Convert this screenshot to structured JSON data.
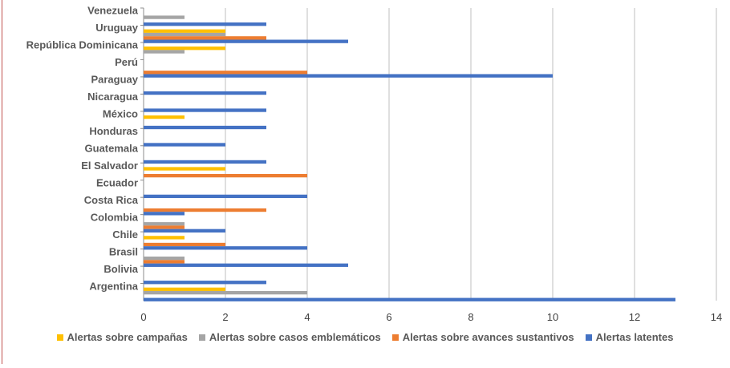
{
  "chart_data": {
    "type": "bar",
    "orientation": "horizontal",
    "categories": [
      "Argentina",
      "Bolivia",
      "Brasil",
      "Chile",
      "Colombia",
      "Costa Rica",
      "Ecuador",
      "El Salvador",
      "Guatemala",
      "Honduras",
      "México",
      "Nicaragua",
      "Paraguay",
      "Perú",
      "República Dominicana",
      "Uruguay",
      "Venezuela"
    ],
    "series": [
      {
        "name": "Alertas sobre campañas",
        "color": "#ffc000",
        "values": [
          2,
          0,
          0,
          1,
          0,
          0,
          0,
          2,
          0,
          0,
          1,
          0,
          0,
          0,
          2,
          2,
          0
        ]
      },
      {
        "name": "Alertas sobre casos emblemáticos",
        "color": "#a5a5a5",
        "values": [
          4,
          0,
          1,
          0,
          1,
          0,
          0,
          0,
          0,
          0,
          0,
          0,
          0,
          0,
          1,
          2,
          1
        ]
      },
      {
        "name": "Alertas sobre avances sustantivos",
        "color": "#ed7d31",
        "values": [
          0,
          0,
          1,
          2,
          1,
          3,
          0,
          4,
          0,
          0,
          0,
          0,
          0,
          4,
          0,
          3,
          0
        ]
      },
      {
        "name": "Alertas latentes",
        "color": "#4472c4",
        "values": [
          13,
          3,
          5,
          4,
          2,
          1,
          4,
          0,
          3,
          2,
          3,
          3,
          3,
          10,
          0,
          5,
          3
        ]
      }
    ],
    "xlim": [
      0,
      14
    ],
    "xticks": [
      0,
      2,
      4,
      6,
      8,
      10,
      12,
      14
    ],
    "grid": "vertical",
    "legend_position": "bottom"
  }
}
